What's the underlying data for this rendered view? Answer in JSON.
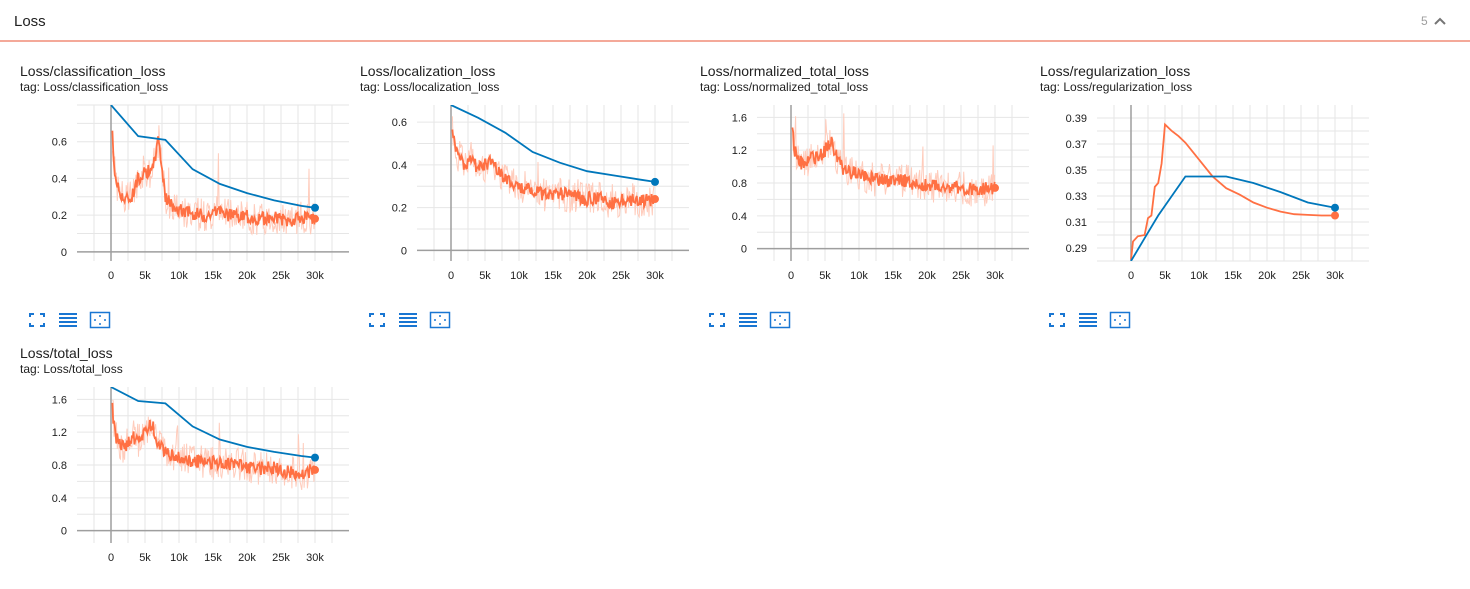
{
  "header": {
    "title": "Loss",
    "count": "5",
    "collapse_icon": "chevron-up-icon"
  },
  "colors": {
    "accent_line": "#f4a999",
    "raw_orange": "#ff7043",
    "raw_orange_faint": "#ffccbc",
    "run_blue": "#0077bb",
    "run_blue_faint": "#b3d4e8"
  },
  "cards": [
    {
      "title": "Loss/classification_loss",
      "tag": "tag: Loss/classification_loss",
      "tools": [
        "fullscreen-icon",
        "list-icon",
        "fit-domain-icon"
      ]
    },
    {
      "title": "Loss/localization_loss",
      "tag": "tag: Loss/localization_loss",
      "tools": [
        "fullscreen-icon",
        "list-icon",
        "fit-domain-icon"
      ]
    },
    {
      "title": "Loss/normalized_total_loss",
      "tag": "tag: Loss/normalized_total_loss",
      "tools": [
        "fullscreen-icon",
        "list-icon",
        "fit-domain-icon"
      ]
    },
    {
      "title": "Loss/regularization_loss",
      "tag": "tag: Loss/regularization_loss",
      "tools": [
        "fullscreen-icon",
        "list-icon",
        "fit-domain-icon"
      ]
    },
    {
      "title": "Loss/total_loss",
      "tag": "tag: Loss/total_loss",
      "tools": [
        "fullscreen-icon",
        "list-icon",
        "fit-domain-icon"
      ]
    }
  ],
  "chart_data": [
    {
      "type": "line",
      "title": "Loss/classification_loss",
      "xlim": [
        -5000,
        35000
      ],
      "ylim": [
        -0.05,
        0.8
      ],
      "x_ticks": [
        "0",
        "5k",
        "10k",
        "15k",
        "20k",
        "25k",
        "30k"
      ],
      "x_tick_values": [
        0,
        5000,
        10000,
        15000,
        20000,
        25000,
        30000
      ],
      "y_ticks": [
        "0",
        "0.2",
        "0.4",
        "0.6"
      ],
      "y_tick_values": [
        0,
        0.2,
        0.4,
        0.6
      ],
      "series": [
        {
          "color": "orange",
          "x": [
            0,
            500,
            1000,
            1500,
            2000,
            3000,
            4000,
            5000,
            6000,
            7000,
            8000,
            9000,
            10000,
            12000,
            14000,
            16000,
            18000,
            20000,
            22000,
            24000,
            26000,
            28000,
            30000
          ],
          "y": [
            0.75,
            0.45,
            0.35,
            0.32,
            0.28,
            0.3,
            0.4,
            0.45,
            0.42,
            0.62,
            0.3,
            0.24,
            0.23,
            0.21,
            0.2,
            0.22,
            0.19,
            0.19,
            0.18,
            0.19,
            0.17,
            0.18,
            0.18
          ]
        },
        {
          "color": "blue",
          "x": [
            0,
            4000,
            8000,
            12000,
            16000,
            20000,
            24000,
            28000,
            30000
          ],
          "y": [
            0.9,
            0.63,
            0.61,
            0.45,
            0.37,
            0.32,
            0.28,
            0.25,
            0.24
          ]
        }
      ]
    },
    {
      "type": "line",
      "title": "Loss/localization_loss",
      "xlim": [
        -5000,
        35000
      ],
      "ylim": [
        -0.05,
        0.68
      ],
      "x_ticks": [
        "0",
        "5k",
        "10k",
        "15k",
        "20k",
        "25k",
        "30k"
      ],
      "x_tick_values": [
        0,
        5000,
        10000,
        15000,
        20000,
        25000,
        30000
      ],
      "y_ticks": [
        "0",
        "0.2",
        "0.4",
        "0.6"
      ],
      "y_tick_values": [
        0,
        0.2,
        0.4,
        0.6
      ],
      "series": [
        {
          "color": "orange",
          "x": [
            0,
            500,
            1000,
            2000,
            3000,
            4000,
            5000,
            6000,
            7000,
            8000,
            10000,
            12000,
            14000,
            16000,
            18000,
            20000,
            22000,
            24000,
            26000,
            28000,
            30000
          ],
          "y": [
            0.65,
            0.5,
            0.45,
            0.4,
            0.44,
            0.38,
            0.4,
            0.42,
            0.36,
            0.34,
            0.3,
            0.28,
            0.26,
            0.27,
            0.25,
            0.24,
            0.25,
            0.22,
            0.24,
            0.23,
            0.24
          ]
        },
        {
          "color": "blue",
          "x": [
            0,
            4000,
            8000,
            12000,
            16000,
            20000,
            24000,
            28000,
            30000
          ],
          "y": [
            0.8,
            0.62,
            0.55,
            0.46,
            0.41,
            0.37,
            0.35,
            0.33,
            0.32
          ]
        }
      ]
    },
    {
      "type": "line",
      "title": "Loss/normalized_total_loss",
      "xlim": [
        -5000,
        35000
      ],
      "ylim": [
        -0.15,
        1.75
      ],
      "x_ticks": [
        "0",
        "5k",
        "10k",
        "15k",
        "20k",
        "25k",
        "30k"
      ],
      "x_tick_values": [
        0,
        5000,
        10000,
        15000,
        20000,
        25000,
        30000
      ],
      "y_ticks": [
        "0",
        "0.4",
        "0.8",
        "1.2",
        "1.6"
      ],
      "y_tick_values": [
        0,
        0.4,
        0.8,
        1.2,
        1.6
      ],
      "series": [
        {
          "color": "orange",
          "x": [
            0,
            500,
            1000,
            2000,
            3000,
            4000,
            5000,
            6000,
            7000,
            8000,
            10000,
            12000,
            14000,
            16000,
            18000,
            20000,
            22000,
            24000,
            26000,
            28000,
            30000
          ],
          "y": [
            1.7,
            1.2,
            1.1,
            1.0,
            1.15,
            1.1,
            1.2,
            1.3,
            1.05,
            0.95,
            0.9,
            0.85,
            0.82,
            0.84,
            0.8,
            0.78,
            0.76,
            0.76,
            0.72,
            0.72,
            0.74
          ]
        }
      ]
    },
    {
      "type": "line",
      "title": "Loss/regularization_loss",
      "xlim": [
        -5000,
        35000
      ],
      "ylim": [
        0.28,
        0.4
      ],
      "x_ticks": [
        "0",
        "5k",
        "10k",
        "15k",
        "20k",
        "25k",
        "30k"
      ],
      "x_tick_values": [
        0,
        5000,
        10000,
        15000,
        20000,
        25000,
        30000
      ],
      "y_ticks": [
        "0.29",
        "0.31",
        "0.33",
        "0.35",
        "0.37",
        "0.39"
      ],
      "y_tick_values": [
        0.29,
        0.31,
        0.33,
        0.35,
        0.37,
        0.39
      ],
      "series": [
        {
          "color": "orange",
          "x": [
            0,
            300,
            1000,
            2000,
            2500,
            3000,
            3500,
            4000,
            4500,
            5000,
            6000,
            7000,
            8000,
            10000,
            12000,
            14000,
            16000,
            18000,
            20000,
            22000,
            24000,
            26000,
            28000,
            30000
          ],
          "y": [
            0.281,
            0.295,
            0.299,
            0.3,
            0.313,
            0.315,
            0.337,
            0.34,
            0.355,
            0.385,
            0.38,
            0.376,
            0.371,
            0.358,
            0.345,
            0.336,
            0.331,
            0.325,
            0.321,
            0.318,
            0.316,
            0.3155,
            0.315,
            0.315
          ]
        },
        {
          "color": "blue",
          "x": [
            0,
            4000,
            8000,
            14000,
            18000,
            22000,
            26000,
            30000
          ],
          "y": [
            0.28,
            0.315,
            0.345,
            0.345,
            0.34,
            0.333,
            0.325,
            0.321
          ]
        }
      ]
    },
    {
      "type": "line",
      "title": "Loss/total_loss",
      "xlim": [
        -5000,
        35000
      ],
      "ylim": [
        -0.15,
        1.75
      ],
      "x_ticks": [
        "0",
        "5k",
        "10k",
        "15k",
        "20k",
        "25k",
        "30k"
      ],
      "x_tick_values": [
        0,
        5000,
        10000,
        15000,
        20000,
        25000,
        30000
      ],
      "y_ticks": [
        "0",
        "0.4",
        "0.8",
        "1.2",
        "1.6"
      ],
      "y_tick_values": [
        0,
        0.4,
        0.8,
        1.2,
        1.6
      ],
      "series": [
        {
          "color": "orange",
          "x": [
            0,
            500,
            1000,
            2000,
            3000,
            4000,
            5000,
            6000,
            7000,
            8000,
            10000,
            12000,
            14000,
            16000,
            18000,
            20000,
            22000,
            24000,
            26000,
            28000,
            30000
          ],
          "y": [
            1.7,
            1.2,
            1.1,
            1.0,
            1.15,
            1.1,
            1.2,
            1.3,
            1.05,
            0.95,
            0.9,
            0.85,
            0.82,
            0.84,
            0.8,
            0.78,
            0.76,
            0.76,
            0.72,
            0.7,
            0.74
          ]
        },
        {
          "color": "blue",
          "x": [
            0,
            4000,
            8000,
            12000,
            16000,
            20000,
            24000,
            28000,
            30000
          ],
          "y": [
            1.9,
            1.58,
            1.55,
            1.27,
            1.11,
            1.02,
            0.96,
            0.91,
            0.89
          ]
        }
      ]
    }
  ]
}
